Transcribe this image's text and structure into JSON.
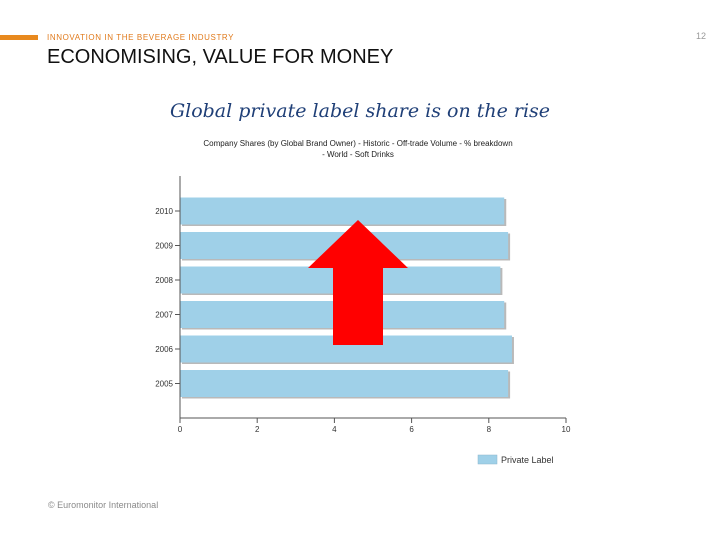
{
  "header": {
    "kicker": "INNOVATION IN THE BEVERAGE INDUSTRY",
    "title": "ECONOMISING, VALUE FOR MONEY",
    "page_number": "12"
  },
  "subtitle": "Global private label share is on the rise",
  "footer": "© Euromonitor International",
  "colors": {
    "accent": "#e8891e",
    "bar": "#9fd0e8",
    "arrow": "#ff0000",
    "subtitle": "#1f3f77"
  },
  "chart_data": {
    "type": "bar",
    "orientation": "horizontal",
    "title_lines": [
      "Company Shares (by Global Brand Owner) - Historic - Off-trade Volume - % breakdown",
      "- World - Soft Drinks"
    ],
    "categories": [
      "2010",
      "2009",
      "2008",
      "2007",
      "2006",
      "2005"
    ],
    "series": [
      {
        "name": "Private Label",
        "values": [
          8.4,
          8.5,
          8.3,
          8.4,
          8.6,
          8.5
        ]
      }
    ],
    "x_ticks": [
      "0",
      "2",
      "4",
      "6",
      "8",
      "10"
    ],
    "xlim": [
      0,
      10
    ],
    "grid": false,
    "legend": "bottom-right",
    "annotation": "red-up-arrow"
  }
}
